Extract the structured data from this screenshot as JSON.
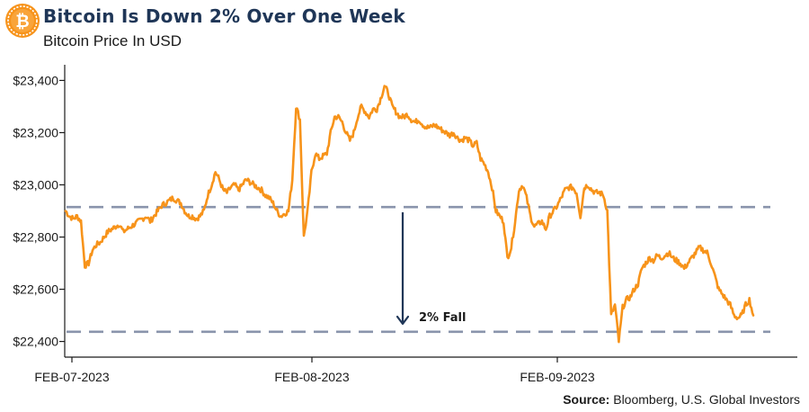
{
  "header": {
    "logo_icon": "bitcoin-coin-icon",
    "logo_color": "#f7931a",
    "title": "Bitcoin Is Down 2% Over One Week",
    "subtitle": "Bitcoin Price In USD"
  },
  "footer": {
    "source_label": "Source:",
    "source_text": "Bloomberg, U.S. Global Investors"
  },
  "chart_data": {
    "type": "line",
    "title": "Bitcoin Is Down 2% Over One Week",
    "subtitle": "Bitcoin Price In USD",
    "xlabel": "",
    "ylabel": "",
    "ylim": [
      22340,
      23460
    ],
    "y_ticks": [
      22400,
      22600,
      22800,
      23000,
      23200,
      23400
    ],
    "y_tick_labels": [
      "$22,400",
      "$22,600",
      "$22,800",
      "$23,000",
      "$23,200",
      "$23,400"
    ],
    "x_tick_labels": [
      "FEB-07-2023",
      "FEB-08-2023",
      "FEB-09-2023"
    ],
    "grid": false,
    "line_color": "#f7931a",
    "reference_color": "#8a94ac",
    "arrow_color": "#1f3657",
    "reference_lines": [
      22915,
      22437
    ],
    "annotation": {
      "text": "2% Fall",
      "from": 22895,
      "to": 22440
    },
    "series": [
      {
        "values": [
          22900,
          22880,
          22870,
          22880,
          22860,
          22690,
          22700,
          22750,
          22770,
          22780,
          22800,
          22820,
          22830,
          22840,
          22850,
          22820,
          22830,
          22840,
          22850,
          22860,
          22870,
          22880,
          22860,
          22880,
          22900,
          22920,
          22930,
          22940,
          22950,
          22940,
          22930,
          22900,
          22880,
          22880,
          22870,
          22880,
          22900,
          22960,
          23000,
          23050,
          23020,
          22980,
          22970,
          22990,
          23000,
          22980,
          23000,
          23020,
          23010,
          23000,
          22990,
          22980,
          22960,
          22950,
          22930,
          22900,
          22880,
          22890,
          22900,
          23020,
          23300,
          23250,
          22800,
          22900,
          23050,
          23120,
          23100,
          23110,
          23120,
          23200,
          23260,
          23260,
          23240,
          23200,
          23170,
          23200,
          23260,
          23300,
          23280,
          23260,
          23290,
          23290,
          23330,
          23380,
          23350,
          23300,
          23280,
          23260,
          23260,
          23270,
          23250,
          23240,
          23250,
          23230,
          23220,
          23220,
          23230,
          23220,
          23210,
          23200,
          23190,
          23200,
          23180,
          23170,
          23180,
          23170,
          23150,
          23160,
          23100,
          23080,
          23050,
          22990,
          22900,
          22880,
          22860,
          22720,
          22760,
          22860,
          22980,
          23000,
          22950,
          22880,
          22840,
          22850,
          22860,
          22830,
          22880,
          22900,
          22920,
          22950,
          22980,
          22990,
          22990,
          22970,
          22880,
          22990,
          23000,
          22980,
          22970,
          22970,
          22960,
          22900,
          22500,
          22540,
          22400,
          22530,
          22560,
          22570,
          22600,
          22620,
          22680,
          22700,
          22720,
          22710,
          22730,
          22720,
          22730,
          22740,
          22720,
          22710,
          22700,
          22680,
          22700,
          22720,
          22740,
          22760,
          22750,
          22740,
          22700,
          22650,
          22600,
          22580,
          22560,
          22540,
          22500,
          22490,
          22500,
          22540,
          22560,
          22500
        ]
      }
    ]
  }
}
